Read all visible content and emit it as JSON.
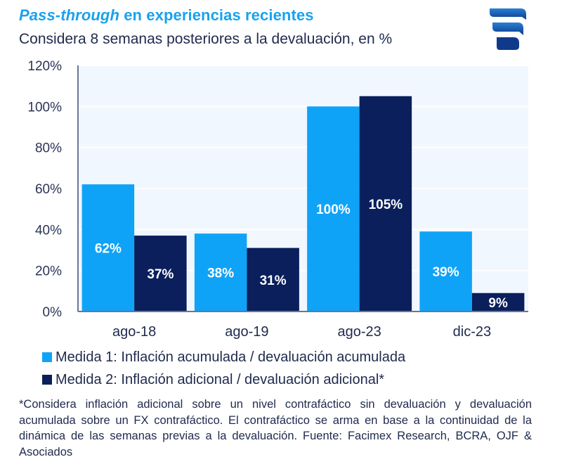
{
  "header": {
    "title_italic": "Pass-through",
    "title_rest": " en experiencias recientes",
    "subtitle": "Considera 8 semanas posteriores a la devaluación, en %"
  },
  "logo": {
    "icon": "facimex-logo-icon",
    "color_top": "#1d6fc4",
    "color_bottom": "#0f3c8f"
  },
  "colors": {
    "series1": "#0fa3f7",
    "series2": "#0a1f5c",
    "title": "#19a2ee",
    "text": "#1f2a4d",
    "plot_bg": "#f1f7fe",
    "axis": "#6b7694"
  },
  "chart_data": {
    "type": "bar",
    "title": "Pass-through en experiencias recientes",
    "subtitle": "Considera 8 semanas posteriores a la devaluación, en %",
    "xlabel": "",
    "ylabel": "",
    "categories": [
      "ago-18",
      "ago-19",
      "ago-23",
      "dic-23"
    ],
    "series": [
      {
        "name": "Medida 1: Inflación acumulada / devaluación acumulada",
        "values": [
          62,
          38,
          100,
          39
        ],
        "labels": [
          "62%",
          "38%",
          "100%",
          "39%"
        ]
      },
      {
        "name": "Medida 2: Inflación adicional / devaluación adicional*",
        "values": [
          37,
          31,
          105,
          9
        ],
        "labels": [
          "37%",
          "31%",
          "105%",
          "9%"
        ]
      }
    ],
    "ylim": [
      0,
      120
    ],
    "yticks": [
      0,
      20,
      40,
      60,
      80,
      100,
      120
    ],
    "ytick_labels": [
      "0%",
      "20%",
      "40%",
      "60%",
      "80%",
      "100%",
      "120%"
    ],
    "grid": true,
    "legend_position": "bottom-left"
  },
  "legend": [
    {
      "label": "Medida 1: Inflación acumulada / devaluación acumulada"
    },
    {
      "label": "Medida 2: Inflación adicional / devaluación adicional*"
    }
  ],
  "footnote": "*Considera inflación adicional sobre un nivel contrafáctico sin devaluación y devaluación acumulada sobre un FX contrafáctico. El contrafáctico se arma en base a la continuidad de la dinámica de las semanas previas a la devaluación. Fuente: Facimex Research, BCRA, OJF & Asociados"
}
